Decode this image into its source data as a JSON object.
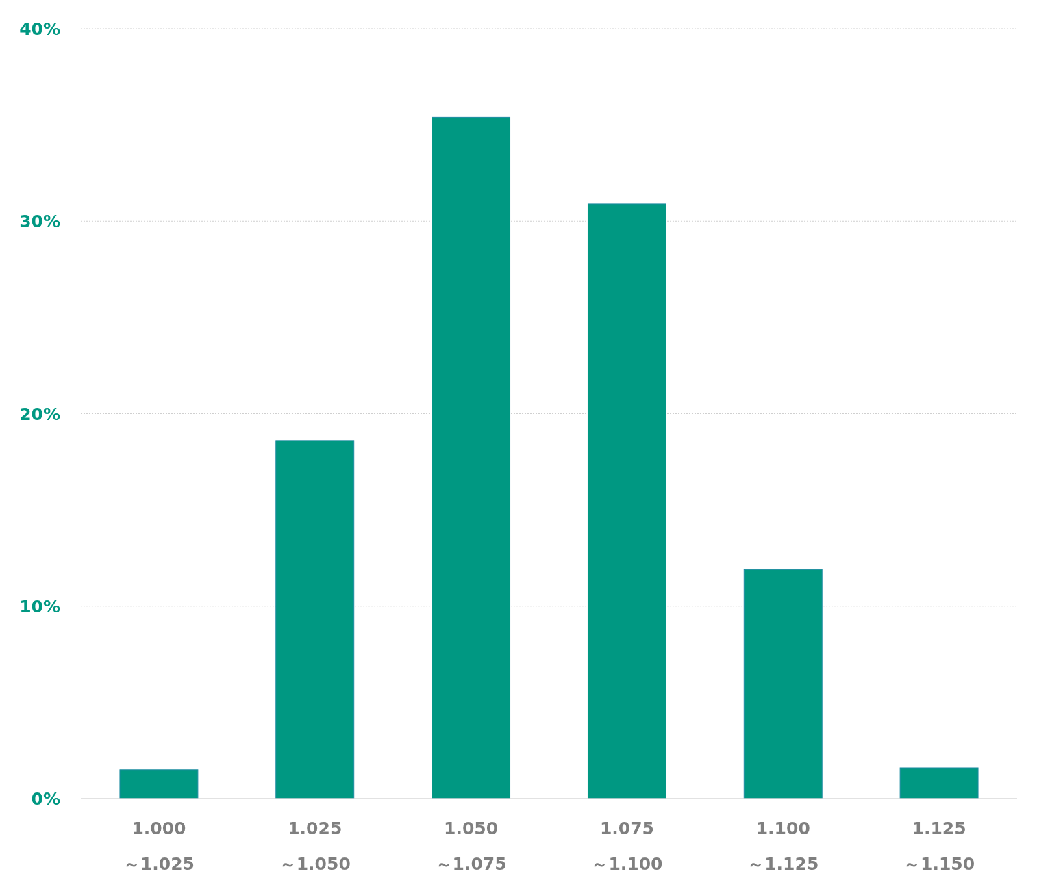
{
  "chart_data": {
    "type": "bar",
    "categories": [
      "1.000\n～1.025",
      "1.025\n～1.050",
      "1.050\n～1.075",
      "1.075\n～1.100",
      "1.100\n～1.125",
      "1.125\n～1.150"
    ],
    "values": [
      1.5,
      18.6,
      35.4,
      30.9,
      11.9,
      1.6
    ],
    "color": "#009882",
    "ylim": [
      0,
      40
    ],
    "yticks": [
      {
        "value": 0,
        "label": "0%"
      },
      {
        "value": 10,
        "label": "10%"
      },
      {
        "value": 20,
        "label": "20%"
      },
      {
        "value": 30,
        "label": "30%"
      },
      {
        "value": 40,
        "label": "40%"
      }
    ],
    "grid": "y"
  }
}
